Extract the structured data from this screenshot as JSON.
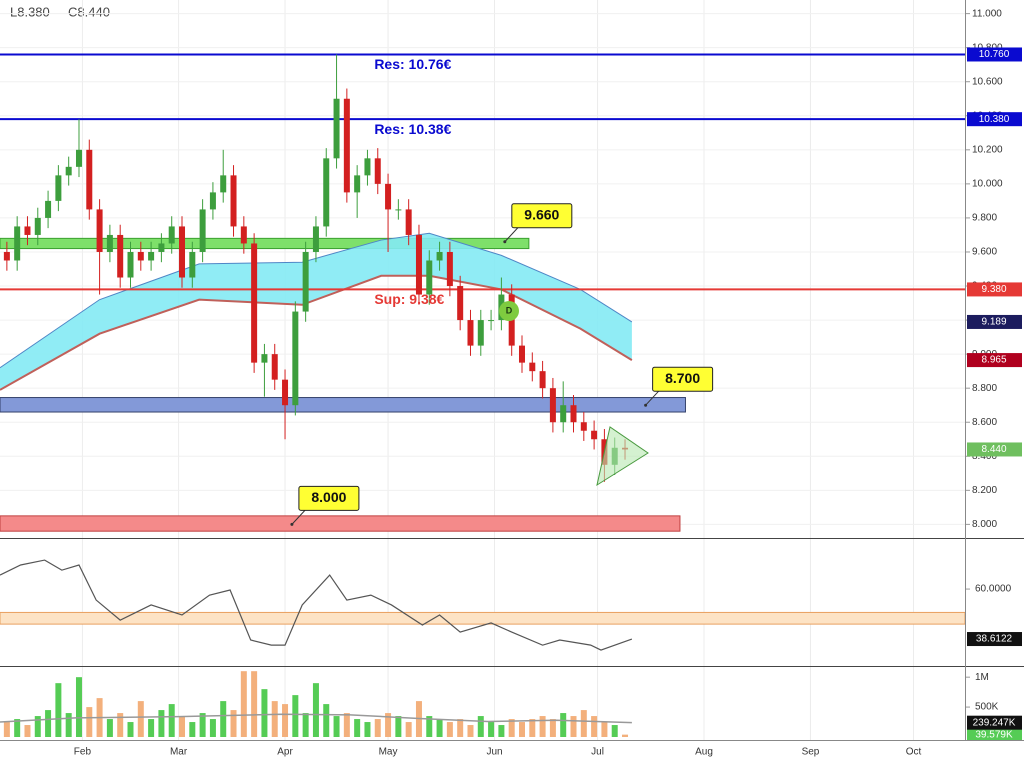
{
  "chart_data": [
    {
      "type": "candlestick",
      "header": {
        "low": "L8.380",
        "close": "C8.440"
      },
      "event_marker": "D",
      "xlim": [
        8,
        289
      ],
      "xticks": [
        {
          "value": 32,
          "label": "Feb"
        },
        {
          "value": 60,
          "label": "Mar"
        },
        {
          "value": 91,
          "label": "Apr"
        },
        {
          "value": 121,
          "label": "May"
        },
        {
          "value": 152,
          "label": "Jun"
        },
        {
          "value": 182,
          "label": "Jul"
        },
        {
          "value": 213,
          "label": "Aug"
        },
        {
          "value": 244,
          "label": "Sep"
        },
        {
          "value": 274,
          "label": "Oct"
        }
      ],
      "ylim": [
        7.92,
        11.08
      ],
      "yticks": [
        {
          "value": 8,
          "label": "8.000"
        },
        {
          "value": 8.2,
          "label": "8.200"
        },
        {
          "value": 8.4,
          "label": "8.400"
        },
        {
          "value": 8.6,
          "label": "8.600"
        },
        {
          "value": 8.8,
          "label": "8.800"
        },
        {
          "value": 9,
          "label": "9.000"
        },
        {
          "value": 9.2,
          "label": "9.200"
        },
        {
          "value": 9.4,
          "label": "9.400"
        },
        {
          "value": 9.6,
          "label": "9.600"
        },
        {
          "value": 9.8,
          "label": "9.800"
        },
        {
          "value": 10,
          "label": "10.000"
        },
        {
          "value": 10.2,
          "label": "10.200"
        },
        {
          "value": 10.4,
          "label": "10.400"
        },
        {
          "value": 10.6,
          "label": "10.600"
        },
        {
          "value": 10.8,
          "label": "10.800"
        },
        {
          "value": 11,
          "label": "11.000"
        }
      ],
      "grid": true,
      "candles": {
        "x": [
          10,
          13,
          16,
          19,
          22,
          25,
          28,
          31,
          34,
          37,
          40,
          43,
          46,
          49,
          52,
          55,
          58,
          61,
          64,
          67,
          70,
          73,
          76,
          79,
          82,
          85,
          88,
          91,
          94,
          97,
          100,
          103,
          106,
          109,
          112,
          115,
          118,
          121,
          124,
          127,
          130,
          133,
          136,
          139,
          142,
          145,
          148,
          151,
          154,
          157,
          160,
          163,
          166,
          169,
          172,
          175,
          178,
          181,
          184,
          187,
          190
        ],
        "open": [
          9.6,
          9.55,
          9.75,
          9.7,
          9.8,
          9.9,
          10.05,
          10.1,
          10.2,
          9.85,
          9.6,
          9.7,
          9.45,
          9.6,
          9.55,
          9.6,
          9.65,
          9.75,
          9.45,
          9.6,
          9.85,
          9.95,
          10.05,
          9.75,
          9.65,
          8.95,
          9.0,
          8.85,
          8.7,
          9.25,
          9.6,
          9.75,
          10.15,
          10.5,
          9.95,
          10.05,
          10.15,
          10.0,
          9.85,
          9.85,
          9.7,
          9.35,
          9.55,
          9.6,
          9.4,
          9.2,
          9.05,
          9.2,
          9.2,
          9.35,
          9.05,
          8.95,
          8.9,
          8.8,
          8.6,
          8.7,
          8.6,
          8.55,
          8.5,
          8.35,
          8.45
        ],
        "high": [
          9.66,
          9.81,
          9.81,
          9.86,
          9.96,
          10.11,
          10.16,
          10.38,
          10.26,
          9.91,
          9.76,
          9.76,
          9.66,
          9.66,
          9.66,
          9.71,
          9.81,
          9.81,
          9.66,
          9.91,
          10.01,
          10.2,
          10.11,
          9.81,
          9.71,
          9.06,
          9.06,
          8.91,
          9.31,
          9.66,
          9.81,
          10.21,
          10.76,
          10.56,
          10.11,
          10.2,
          10.21,
          10.06,
          9.91,
          9.91,
          9.76,
          9.61,
          9.66,
          9.66,
          9.46,
          9.26,
          9.26,
          9.26,
          9.45,
          9.41,
          9.11,
          9.01,
          8.96,
          8.86,
          8.84,
          8.76,
          8.66,
          8.61,
          8.56,
          8.51,
          8.5
        ],
        "low": [
          9.49,
          9.49,
          9.64,
          9.64,
          9.74,
          9.84,
          9.99,
          10.04,
          9.79,
          9.35,
          9.54,
          9.39,
          9.39,
          9.49,
          9.49,
          9.54,
          9.59,
          9.39,
          9.39,
          9.54,
          9.79,
          9.89,
          9.69,
          9.59,
          8.89,
          8.75,
          8.79,
          8.5,
          8.64,
          9.19,
          9.54,
          9.69,
          10.09,
          9.89,
          9.8,
          9.99,
          9.94,
          9.6,
          9.79,
          9.64,
          9.29,
          9.29,
          9.49,
          9.34,
          9.14,
          8.99,
          8.99,
          9.14,
          9.14,
          8.99,
          8.89,
          8.84,
          8.74,
          8.54,
          8.54,
          8.54,
          8.49,
          8.44,
          8.25,
          8.29,
          8.38
        ],
        "close": [
          9.55,
          9.75,
          9.7,
          9.8,
          9.9,
          10.05,
          10.1,
          10.2,
          9.85,
          9.6,
          9.7,
          9.45,
          9.6,
          9.55,
          9.6,
          9.65,
          9.75,
          9.45,
          9.6,
          9.85,
          9.95,
          10.05,
          9.75,
          9.65,
          8.95,
          9.0,
          8.85,
          8.7,
          9.25,
          9.6,
          9.75,
          10.15,
          10.5,
          9.95,
          10.05,
          10.15,
          10.0,
          9.85,
          9.85,
          9.7,
          9.35,
          9.55,
          9.6,
          9.4,
          9.2,
          9.05,
          9.2,
          9.2,
          9.35,
          9.05,
          8.95,
          8.9,
          8.8,
          8.6,
          8.7,
          8.6,
          8.55,
          8.5,
          8.35,
          8.45,
          8.44
        ],
        "up_color": "#3d9e3d",
        "down_color": "#d32020",
        "last_label": "8.440",
        "last_color": "#6fbf5f"
      },
      "ma_fill": "#84eaf4",
      "ma": [
        {
          "x": [
            8,
            37,
            66,
            96,
            119,
            133,
            154,
            177,
            192
          ],
          "values": [
            8.92,
            9.32,
            9.53,
            9.54,
            9.67,
            9.71,
            9.58,
            9.38,
            9.189
          ],
          "color": "#4f86c6",
          "label_color": "#1c1c5e"
        },
        {
          "x": [
            8,
            37,
            66,
            96,
            119,
            133,
            154,
            177,
            192
          ],
          "values": [
            8.79,
            9.12,
            9.32,
            9.29,
            9.46,
            9.46,
            9.38,
            9.15,
            8.965
          ],
          "color": "#c0605a",
          "label_color": "#b0001e"
        }
      ],
      "levels": [
        {
          "name": "Res: 10.76€",
          "value": 10.76,
          "label": "10.760",
          "color": "#0a0ad0"
        },
        {
          "name": "Res: 10.38€",
          "value": 10.38,
          "label": "10.380",
          "color": "#0a0ad0"
        },
        {
          "name": "Sup: 9.38€",
          "value": 9.38,
          "label": "9.380",
          "color": "#e53935"
        }
      ],
      "zones": [
        {
          "value": 9.66,
          "label": "9.660",
          "range": [
            9.62,
            9.68
          ],
          "x_range": [
            8,
            162
          ],
          "at": 155,
          "color": "#7ee06a",
          "edge": "#3aa030"
        },
        {
          "value": 8.7,
          "label": "8.700",
          "range": [
            8.66,
            8.745
          ],
          "x_range": [
            8,
            207.6
          ],
          "at": 196,
          "color": "#8399d8",
          "edge": "#33406a"
        },
        {
          "value": 8,
          "label": "8.000",
          "range": [
            7.96,
            8.05
          ],
          "x_range": [
            8,
            206
          ],
          "at": 93,
          "color": "#f48a8a",
          "edge": "#c04040"
        }
      ]
    },
    {
      "type": "line",
      "x": [
        8,
        14,
        21,
        26,
        31,
        36,
        43,
        52,
        61,
        69,
        75,
        81,
        87,
        91,
        96,
        104,
        109,
        116,
        122,
        131,
        136,
        142,
        151,
        157,
        166,
        171,
        180,
        183,
        192
      ],
      "values": [
        66.0,
        70.3,
        72.4,
        68.1,
        70.3,
        55.3,
        46.7,
        53.2,
        48.9,
        57.4,
        59.6,
        38.2,
        36.0,
        36.0,
        53.2,
        66.0,
        55.3,
        57.4,
        53.2,
        44.6,
        48.9,
        41.6,
        45.5,
        41.6,
        36.0,
        38.2,
        36.0,
        33.9,
        38.6122
      ],
      "color": "#555555",
      "ylim": [
        27.5,
        81
      ],
      "yticks": [
        {
          "value": 60,
          "label": "60.0000"
        }
      ],
      "band": [
        45,
        50
      ],
      "band_color": "#fde3c5",
      "band_edge": "#e8a060"
    },
    {
      "type": "bar",
      "x": [
        10,
        13,
        16,
        19,
        22,
        25,
        28,
        31,
        34,
        37,
        40,
        43,
        46,
        49,
        52,
        55,
        58,
        61,
        64,
        67,
        70,
        73,
        76,
        79,
        82,
        85,
        88,
        91,
        94,
        97,
        100,
        103,
        106,
        109,
        112,
        115,
        118,
        121,
        124,
        127,
        130,
        133,
        136,
        139,
        142,
        145,
        148,
        151,
        154,
        157,
        160,
        163,
        166,
        169,
        172,
        175,
        178,
        181,
        184,
        187,
        190
      ],
      "values": [
        250000,
        300000,
        200000,
        350000,
        450000,
        900000,
        400000,
        1000000,
        500000,
        650000,
        300000,
        400000,
        250000,
        600000,
        300000,
        450000,
        550000,
        350000,
        250000,
        400000,
        300000,
        600000,
        450000,
        1100000,
        1100000,
        800000,
        600000,
        550000,
        700000,
        400000,
        900000,
        550000,
        350000,
        400000,
        300000,
        250000,
        300000,
        400000,
        350000,
        250000,
        600000,
        350000,
        300000,
        250000,
        300000,
        200000,
        350000,
        250000,
        200000,
        300000,
        250000,
        300000,
        350000,
        300000,
        400000,
        350000,
        450000,
        350000,
        250000,
        200000,
        39579
      ],
      "up_color": "#55cc55",
      "down_color": "#f3b07c",
      "last_label": "39.579K",
      "ylim": [
        0,
        1170000
      ],
      "yticks": [
        {
          "value": 1000000,
          "label": "1M"
        },
        {
          "value": 500000,
          "label": "500K"
        }
      ],
      "ma": {
        "x": [
          8,
          30,
          60,
          90,
          110,
          130,
          150,
          170,
          192
        ],
        "values": [
          250000,
          320000,
          340000,
          380000,
          370000,
          310000,
          260000,
          280000,
          239247
        ],
        "color": "#999999",
        "last_label": "239.247K"
      }
    }
  ]
}
